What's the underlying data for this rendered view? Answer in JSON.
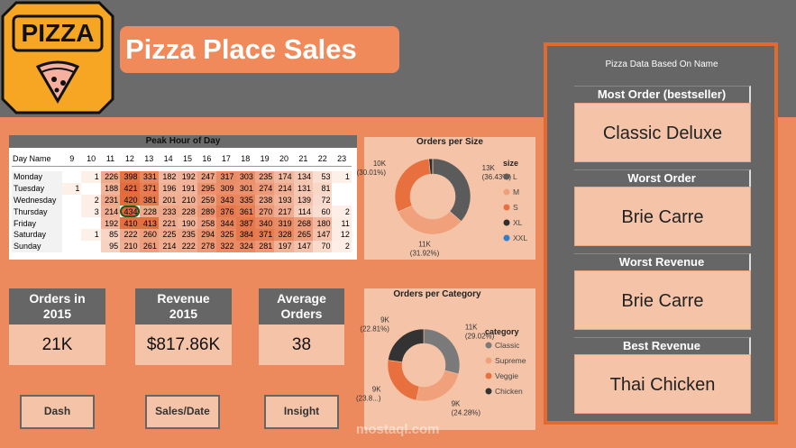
{
  "header": {
    "logo": "PIZZA",
    "title": "Pizza Place Sales"
  },
  "table": {
    "title": "Peak Hour of Day",
    "columns": [
      "Day Name",
      "9",
      "10",
      "11",
      "12",
      "13",
      "14",
      "15",
      "16",
      "17",
      "18",
      "19",
      "20",
      "21",
      "22",
      "23"
    ],
    "rows": [
      {
        "day": "Monday",
        "values": [
          null,
          1,
          226,
          398,
          331,
          182,
          192,
          247,
          317,
          303,
          235,
          174,
          134,
          53,
          1
        ]
      },
      {
        "day": "Tuesday",
        "values": [
          1,
          null,
          188,
          421,
          371,
          196,
          191,
          295,
          309,
          301,
          274,
          214,
          131,
          81,
          null
        ]
      },
      {
        "day": "Wednesday",
        "values": [
          null,
          2,
          231,
          420,
          381,
          201,
          210,
          259,
          343,
          335,
          238,
          193,
          139,
          72,
          null
        ]
      },
      {
        "day": "Thursday",
        "values": [
          null,
          3,
          214,
          434,
          228,
          233,
          228,
          289,
          376,
          361,
          270,
          217,
          114,
          60,
          2
        ]
      },
      {
        "day": "Friday",
        "values": [
          null,
          null,
          192,
          410,
          413,
          221,
          190,
          258,
          344,
          387,
          340,
          319,
          268,
          180,
          11
        ]
      },
      {
        "day": "Saturday",
        "values": [
          null,
          1,
          85,
          222,
          260,
          225,
          235,
          294,
          325,
          384,
          371,
          328,
          265,
          147,
          12
        ]
      },
      {
        "day": "Sunday",
        "values": [
          null,
          null,
          95,
          210,
          261,
          214,
          222,
          278,
          322,
          324,
          281,
          197,
          147,
          70,
          2
        ]
      }
    ]
  },
  "chart_data": [
    {
      "type": "donut",
      "title": "Orders per Size",
      "legend_title": "size",
      "categories": [
        "L",
        "M",
        "S",
        "XL",
        "XXL"
      ],
      "values": [
        36.43,
        31.92,
        30.01,
        1.56,
        0.08
      ],
      "value_labels": [
        "(36.43%)",
        "(31.92%)",
        "(30.01%)",
        null,
        null
      ],
      "count_labels": [
        "13K",
        "11K",
        "10K",
        null,
        null
      ],
      "colors": [
        "#5b5b5b",
        "#f0a07a",
        "#e8703e",
        "#2e2e2e",
        "#2f7fd0"
      ]
    },
    {
      "type": "donut",
      "title": "Orders per Category",
      "legend_title": "category",
      "categories": [
        "Classic",
        "Supreme",
        "Veggie",
        "Chicken"
      ],
      "values": [
        29.02,
        24.28,
        23.89,
        22.81
      ],
      "value_labels": [
        "(29.02%)",
        "(24.28%)",
        "(23.8...)",
        "(22.81%)"
      ],
      "count_labels": [
        "11K",
        "9K",
        "9K",
        "9K"
      ],
      "colors": [
        "#7a7a7a",
        "#f0a07a",
        "#e8703e",
        "#333333"
      ]
    }
  ],
  "kpis": [
    {
      "label": "Orders in 2015",
      "value": "21K"
    },
    {
      "label": "Revenue 2015",
      "value": "$817.86K"
    },
    {
      "label": "Average Orders",
      "value": "38"
    }
  ],
  "buttons": [
    "Dash",
    "Sales/Date",
    "Insight"
  ],
  "panel": {
    "title": "Pizza Data Based On Name",
    "cards": [
      {
        "label": "Most Order (bestseller)",
        "value": "Classic Deluxe"
      },
      {
        "label": "Worst Order",
        "value": "Brie Carre"
      },
      {
        "label": "Worst Revenue",
        "value": "Brie Carre"
      },
      {
        "label": "Best Revenue",
        "value": "Thai Chicken"
      }
    ]
  },
  "watermark": "mostaql.com"
}
